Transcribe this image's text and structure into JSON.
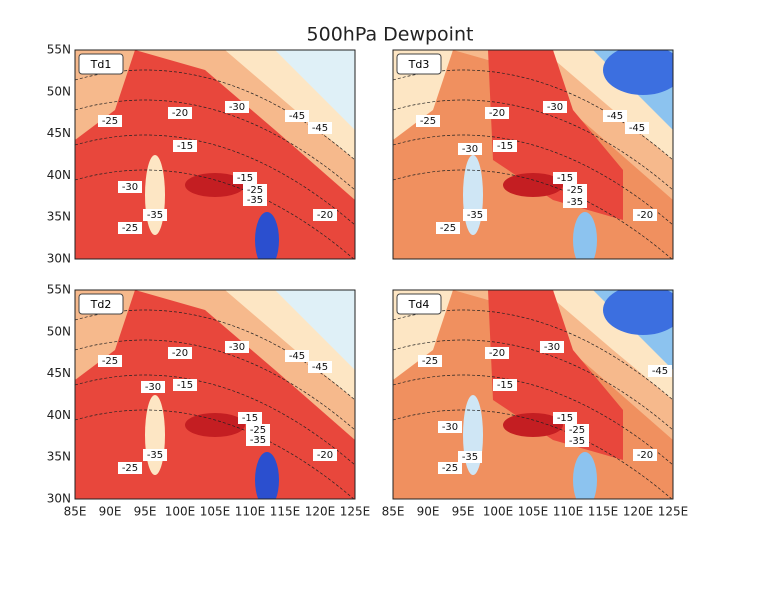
{
  "title": "500hPa Dewpoint",
  "y_labels": [
    "55N",
    "50N",
    "45N",
    "40N",
    "35N",
    "30N"
  ],
  "x_labels": [
    "85E",
    "90E",
    "95E",
    "100E",
    "105E",
    "110E",
    "115E",
    "120E",
    "125E"
  ],
  "panels": [
    {
      "label": "Td1",
      "contour_labels": [
        "-25",
        "-20",
        "-30",
        "-45",
        "-45",
        "-15",
        "-30",
        "-15",
        "-25",
        "-35",
        "-35",
        "-25",
        "-20"
      ]
    },
    {
      "label": "Td3",
      "contour_labels": [
        "-25",
        "-20",
        "-30",
        "-45",
        "-45",
        "-30",
        "-15",
        "-15",
        "-25",
        "-35",
        "-35",
        "-25",
        "-20"
      ]
    },
    {
      "label": "Td2",
      "contour_labels": [
        "-25",
        "-20",
        "-30",
        "-45",
        "-45",
        "-30",
        "-15",
        "-15",
        "-25",
        "-35",
        "-35",
        "-25",
        "-20"
      ]
    },
    {
      "label": "Td4",
      "contour_labels": [
        "-25",
        "-20",
        "-30",
        "-45",
        "-30",
        "-15",
        "-15",
        "-25",
        "-35",
        "-35",
        "-25",
        "-20"
      ]
    }
  ]
}
